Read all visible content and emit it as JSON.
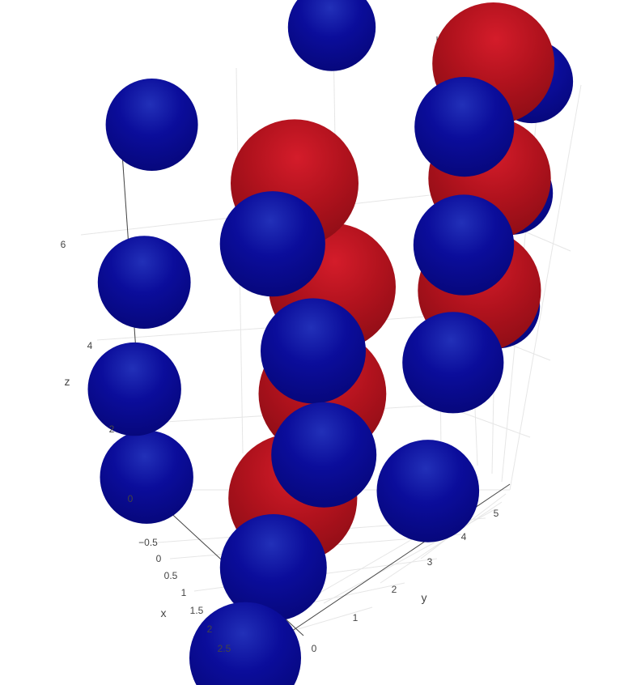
{
  "chart_data": {
    "type": "scatter3d",
    "title": "",
    "axes": {
      "x": {
        "title": "x",
        "ticks": [
          "−0.5",
          "0",
          "0.5",
          "1",
          "1.5",
          "2",
          "2.5"
        ],
        "range": [
          -0.8,
          2.8
        ]
      },
      "y": {
        "title": "y",
        "ticks": [
          "0",
          "1",
          "2",
          "3",
          "4",
          "5"
        ],
        "range": [
          -0.3,
          5.5
        ]
      },
      "z": {
        "title": "z",
        "ticks": [
          "0",
          "2",
          "4",
          "6"
        ],
        "range": [
          -0.5,
          7.5
        ]
      }
    },
    "grid": true,
    "series": [
      {
        "color": "#b5131f",
        "marker": "sphere",
        "points": [
          {
            "x": 1.0,
            "y": 1.2,
            "z": 5.8
          },
          {
            "x": 1.0,
            "y": 4.0,
            "z": 6.6
          },
          {
            "x": 1.0,
            "y": 1.9,
            "z": 3.5
          },
          {
            "x": 1.0,
            "y": 4.1,
            "z": 4.4
          },
          {
            "x": 1.0,
            "y": 1.9,
            "z": 1.5
          },
          {
            "x": 1.0,
            "y": 4.1,
            "z": 2.3
          },
          {
            "x": 1.0,
            "y": 1.6,
            "z": -0.3
          }
        ]
      },
      {
        "color": "#07088f",
        "marker": "sphere",
        "points": [
          {
            "x": -0.6,
            "y": -0.2,
            "z": 6.6
          },
          {
            "x": -0.5,
            "y": 2.3,
            "z": 7.2
          },
          {
            "x": -0.6,
            "y": 4.0,
            "z": 7.6
          },
          {
            "x": -0.5,
            "y": 5.4,
            "z": 7.4
          },
          {
            "x": 1.9,
            "y": 0.5,
            "z": 5.6
          },
          {
            "x": 1.9,
            "y": 3.2,
            "z": 6.4
          },
          {
            "x": -0.6,
            "y": -0.1,
            "z": 3.6
          },
          {
            "x": -0.4,
            "y": 5.3,
            "z": 4.7
          },
          {
            "x": 2.0,
            "y": 1.2,
            "z": 3.3
          },
          {
            "x": 2.0,
            "y": 3.3,
            "z": 4.2
          },
          {
            "x": -0.5,
            "y": 5.2,
            "z": 2.6
          },
          {
            "x": -0.6,
            "y": -0.1,
            "z": 1.6
          },
          {
            "x": 2.0,
            "y": 1.5,
            "z": 1.2
          },
          {
            "x": 2.0,
            "y": 3.3,
            "z": 2.0
          },
          {
            "x": -0.4,
            "y": 5.1,
            "z": 0.6
          },
          {
            "x": -0.6,
            "y": 0.2,
            "z": -0.2
          },
          {
            "x": 2.0,
            "y": 0.9,
            "z": -0.6
          },
          {
            "x": 2.0,
            "y": 3.1,
            "z": -0.3
          },
          {
            "x": 2.6,
            "y": 0.3,
            "z": -1.6
          }
        ]
      }
    ]
  }
}
